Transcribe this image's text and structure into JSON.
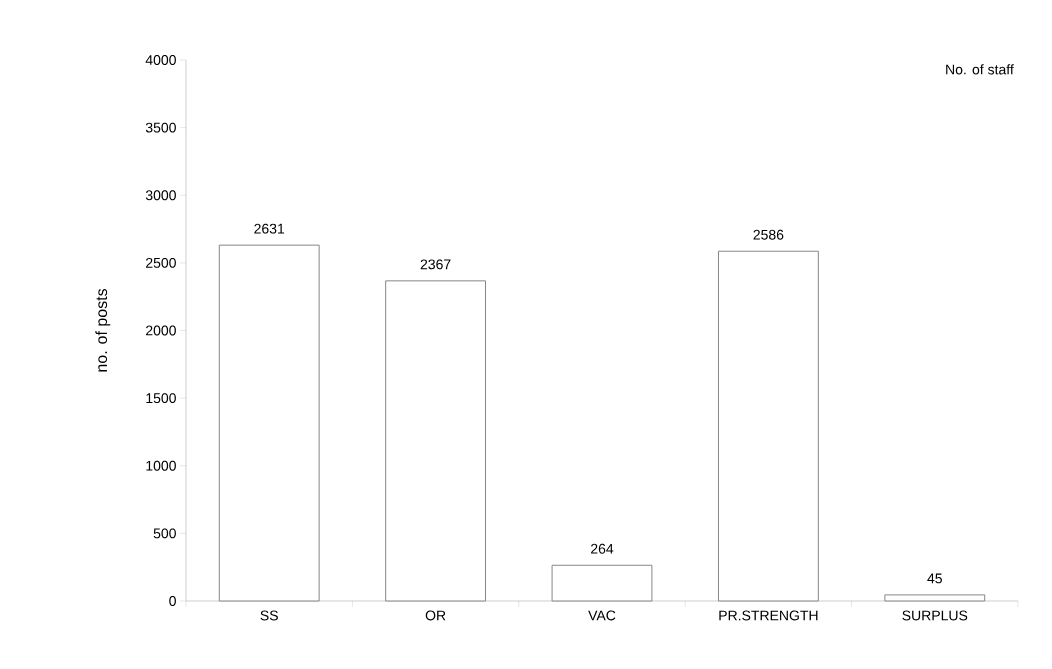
{
  "chart_data": {
    "type": "bar",
    "ylabel": "no. of posts",
    "categories": [
      "SS",
      "OR",
      "VAC",
      "PR.STRENGTH",
      "SURPLUS"
    ],
    "series": [
      {
        "name": "No. of staff",
        "color": "#ffffff",
        "values": [
          2631,
          2367,
          264,
          2586,
          45
        ]
      }
    ],
    "ylim": [
      0,
      4000
    ],
    "yticks": [
      0,
      500,
      1000,
      1500,
      2000,
      2500,
      3000,
      3500,
      4000
    ],
    "data_labels": true,
    "legend": "top right",
    "grid": false
  }
}
